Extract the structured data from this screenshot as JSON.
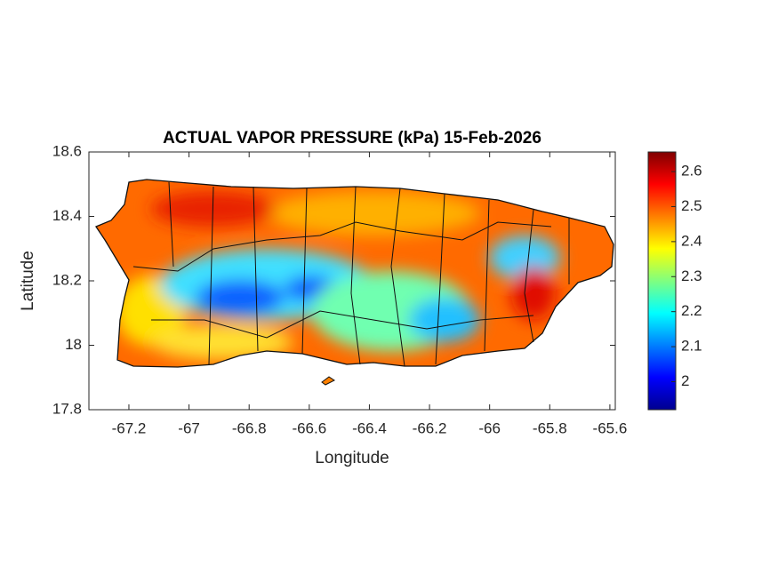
{
  "chart_data": {
    "type": "map",
    "title": "ACTUAL VAPOR PRESSURE (kPa) 15-Feb-2026",
    "x_label": "Longitude",
    "y_label": "Latitude",
    "xlim": [
      -67.333,
      -65.582
    ],
    "xticks": [
      -67.2,
      -67,
      -66.8,
      -66.6,
      -66.4,
      -66.2,
      -66,
      -65.8,
      -65.6
    ],
    "ylim": [
      17.8,
      18.6
    ],
    "yticks": [
      17.8,
      18,
      18.2,
      18.4,
      18.6
    ],
    "colormap": "jet",
    "clim": [
      1.92,
      2.656
    ],
    "cticks": [
      2,
      2.1,
      2.2,
      2.3,
      2.4,
      2.5,
      2.6
    ]
  }
}
